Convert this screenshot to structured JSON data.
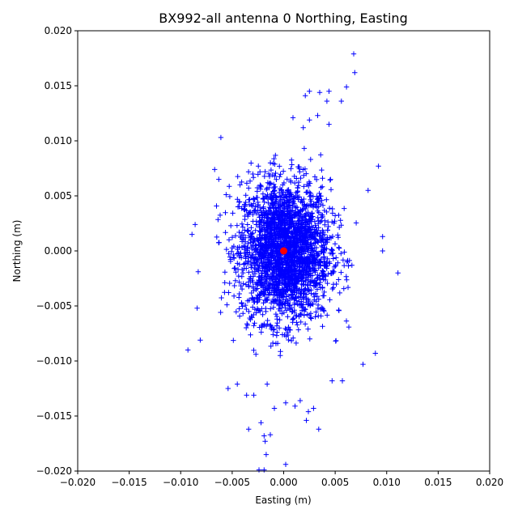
{
  "chart_data": {
    "type": "scatter",
    "title": "BX992-all antenna 0 Northing, Easting",
    "xlabel": "Easting (m)",
    "ylabel": "Northing (m)",
    "xlim": [
      -0.02,
      0.02
    ],
    "ylim": [
      -0.02,
      0.02
    ],
    "xticks": [
      "−0.020",
      "−0.015",
      "−0.010",
      "−0.005",
      "0.000",
      "0.005",
      "0.010",
      "0.015",
      "0.020"
    ],
    "yticks": [
      "−0.020",
      "−0.015",
      "−0.010",
      "−0.005",
      "0.000",
      "0.005",
      "0.010",
      "0.015",
      "0.020"
    ],
    "xtick_values": [
      -0.02,
      -0.015,
      -0.01,
      -0.005,
      0,
      0.005,
      0.01,
      0.015,
      0.02
    ],
    "ytick_values": [
      -0.02,
      -0.015,
      -0.01,
      -0.005,
      0,
      0.005,
      0.01,
      0.015,
      0.02
    ],
    "grid": false,
    "series": [
      {
        "marker": "plus",
        "color": "#0000ff",
        "distribution": {
          "center": [
            0.0001,
            0.0
          ],
          "std_x": 0.0022,
          "std_y": 0.0032
        },
        "outliers": [
          [
            0.0068,
            0.0179
          ],
          [
            0.0069,
            0.0162
          ],
          [
            0.0061,
            0.0149
          ],
          [
            0.0056,
            0.0136
          ],
          [
            0.0042,
            0.0136
          ],
          [
            0.0044,
            0.0145
          ],
          [
            0.0035,
            0.0144
          ],
          [
            0.0025,
            0.0145
          ],
          [
            0.0021,
            0.0141
          ],
          [
            0.0033,
            0.0123
          ],
          [
            0.0025,
            0.0119
          ],
          [
            0.0019,
            0.0112
          ],
          [
            0.0009,
            0.0121
          ],
          [
            0.0044,
            0.0115
          ],
          [
            0.0111,
            -0.002
          ],
          [
            0.0092,
            0.0077
          ],
          [
            0.0096,
            0.0013
          ],
          [
            0.0096,
            0.0
          ],
          [
            0.0089,
            -0.0093
          ],
          [
            -0.0093,
            -0.009
          ],
          [
            -0.0089,
            0.0015
          ],
          [
            -0.0086,
            0.0024
          ],
          [
            -0.0084,
            -0.0052
          ],
          [
            -0.0081,
            -0.0081
          ],
          [
            -0.0083,
            -0.0019
          ],
          [
            -0.0061,
            0.0103
          ],
          [
            -0.0034,
            -0.0162
          ],
          [
            -0.0022,
            -0.0156
          ],
          [
            -0.0019,
            -0.0168
          ],
          [
            -0.0018,
            -0.0173
          ],
          [
            -0.0013,
            -0.0167
          ],
          [
            -0.0017,
            -0.0185
          ],
          [
            -0.0024,
            -0.0199
          ],
          [
            -0.0019,
            -0.0199
          ],
          [
            0.0002,
            -0.0194
          ],
          [
            0.0034,
            -0.0162
          ],
          [
            0.0022,
            -0.0154
          ],
          [
            0.0024,
            -0.0146
          ],
          [
            0.0029,
            -0.0143
          ],
          [
            0.0016,
            -0.0136
          ],
          [
            0.0011,
            -0.0141
          ],
          [
            -0.0009,
            -0.0143
          ],
          [
            0.0002,
            -0.0138
          ],
          [
            -0.0016,
            -0.0121
          ],
          [
            -0.0029,
            -0.0131
          ],
          [
            -0.0036,
            -0.0131
          ],
          [
            -0.0054,
            -0.0125
          ],
          [
            -0.0045,
            -0.0121
          ],
          [
            0.0047,
            -0.0118
          ],
          [
            0.0057,
            -0.0118
          ],
          [
            0.0077,
            -0.0103
          ],
          [
            0.0082,
            0.0055
          ],
          [
            -0.0067,
            0.0074
          ],
          [
            -0.0063,
            0.0065
          ]
        ]
      },
      {
        "marker": "circle",
        "color": "#ff0000",
        "points": [
          [
            0.0,
            0.0
          ]
        ]
      }
    ]
  }
}
